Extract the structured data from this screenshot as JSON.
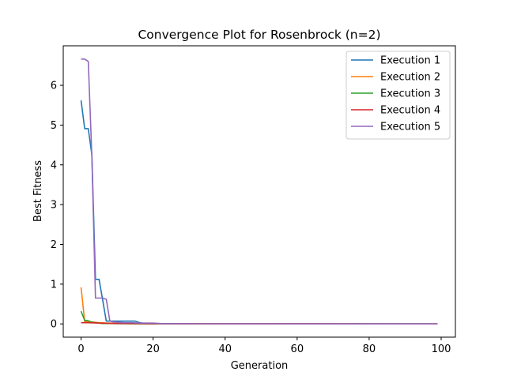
{
  "chart_data": {
    "type": "line",
    "title": "Convergence Plot for Rosenbrock (n=2)",
    "xlabel": "Generation",
    "ylabel": "Best Fitness",
    "xlim": [
      -4.95,
      103.95
    ],
    "ylim": [
      -0.333,
      6.994
    ],
    "xticks": [
      0,
      20,
      40,
      60,
      80,
      100
    ],
    "yticks": [
      0,
      1,
      2,
      3,
      4,
      5,
      6
    ],
    "grid": false,
    "legend_position": "top-right",
    "series": [
      {
        "name": "Execution 1",
        "color": "#1f77b4",
        "x": [
          0,
          1,
          2,
          3,
          4,
          5,
          6,
          7,
          8,
          9,
          10,
          11,
          12,
          13,
          14,
          15,
          16,
          17,
          18,
          20,
          25,
          30,
          99
        ],
        "y": [
          5.62,
          4.91,
          4.91,
          4.25,
          1.12,
          1.12,
          0.6,
          0.07,
          0.07,
          0.07,
          0.07,
          0.07,
          0.07,
          0.07,
          0.07,
          0.07,
          0.04,
          0.02,
          0.01,
          0.005,
          0.002,
          0.001,
          0.0
        ]
      },
      {
        "name": "Execution 2",
        "color": "#ff7f0e",
        "x": [
          0,
          1,
          2,
          3,
          4,
          5,
          6,
          7,
          8,
          10,
          12,
          15,
          20,
          99
        ],
        "y": [
          0.92,
          0.06,
          0.06,
          0.05,
          0.04,
          0.03,
          0.03,
          0.02,
          0.02,
          0.01,
          0.01,
          0.005,
          0.002,
          0.0
        ]
      },
      {
        "name": "Execution 3",
        "color": "#2ca02c",
        "x": [
          0,
          1,
          2,
          3,
          4,
          5,
          6,
          8,
          10,
          15,
          20,
          99
        ],
        "y": [
          0.32,
          0.09,
          0.08,
          0.04,
          0.03,
          0.02,
          0.01,
          0.01,
          0.005,
          0.002,
          0.001,
          0.0
        ]
      },
      {
        "name": "Execution 4",
        "color": "#d62728",
        "x": [
          0,
          2,
          5,
          10,
          20,
          99
        ],
        "y": [
          0.03,
          0.03,
          0.02,
          0.01,
          0.005,
          0.0
        ]
      },
      {
        "name": "Execution 5",
        "color": "#9467bd",
        "x": [
          0,
          1,
          2,
          3,
          4,
          5,
          6,
          7,
          8,
          9,
          10,
          12,
          14,
          16,
          18,
          20,
          22,
          25,
          99
        ],
        "y": [
          6.66,
          6.66,
          6.6,
          4.2,
          0.65,
          0.65,
          0.65,
          0.62,
          0.07,
          0.05,
          0.04,
          0.03,
          0.03,
          0.02,
          0.02,
          0.02,
          0.01,
          0.005,
          0.0
        ]
      }
    ]
  }
}
